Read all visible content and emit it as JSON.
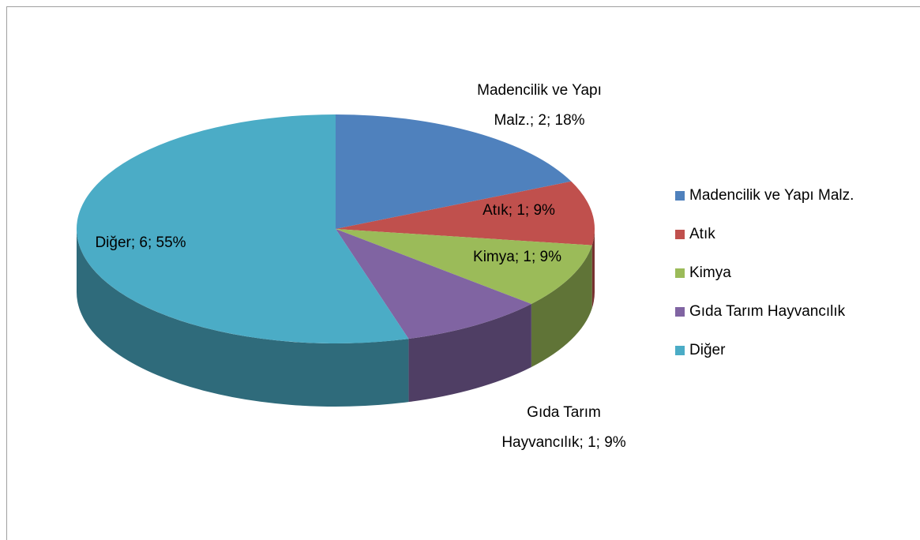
{
  "chart_data": {
    "type": "pie3d",
    "categories": [
      "Madencilik ve Yapı Malz.",
      "Atık",
      "Kimya",
      "Gıda Tarım Hayvancılık",
      "Diğer"
    ],
    "values": [
      2,
      1,
      1,
      1,
      6
    ],
    "value_labels": [
      "Madencilik ve Yapı Malz.; 2; 18%",
      "Atık; 1; 9%",
      "Kimya; 1; 9%",
      "Gıda Tarım Hayvancılık; 1; 9%",
      "Diğer; 6; 55%"
    ],
    "colors": [
      "#4f81bd",
      "#c0504d",
      "#9bbb59",
      "#8064a2",
      "#4bacc6"
    ],
    "legend": "right"
  }
}
